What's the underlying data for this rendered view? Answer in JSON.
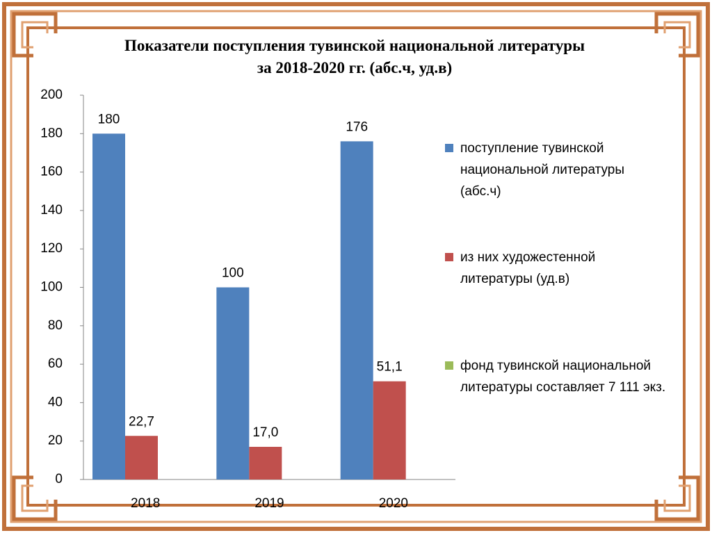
{
  "chart_data": {
    "type": "bar",
    "title": "Показатели поступления тувинской национальной литературы за 2018-2020 гг. (абс.ч, уд.в)",
    "categories": [
      "2018",
      "2019",
      "2020"
    ],
    "series": [
      {
        "name": "поступление тувинской национальной литературы (абс.ч)",
        "color": "#4f81bd",
        "values": [
          180,
          100,
          176
        ]
      },
      {
        "name": "из них художестенной литературы (уд.в)",
        "color": "#c0504d",
        "values": [
          22.7,
          17.0,
          51.1
        ],
        "value_labels": [
          "22,7",
          "17,0",
          "51,1"
        ]
      },
      {
        "name": "фонд тувинской национальной литературы составляет 7 111 экз.",
        "color": "#9bbb59",
        "values": [
          null,
          null,
          null
        ]
      }
    ],
    "ylim": [
      0,
      200
    ],
    "yticks": [
      0,
      20,
      40,
      60,
      80,
      100,
      120,
      140,
      160,
      180,
      200
    ],
    "grid": false,
    "legend": "right"
  }
}
